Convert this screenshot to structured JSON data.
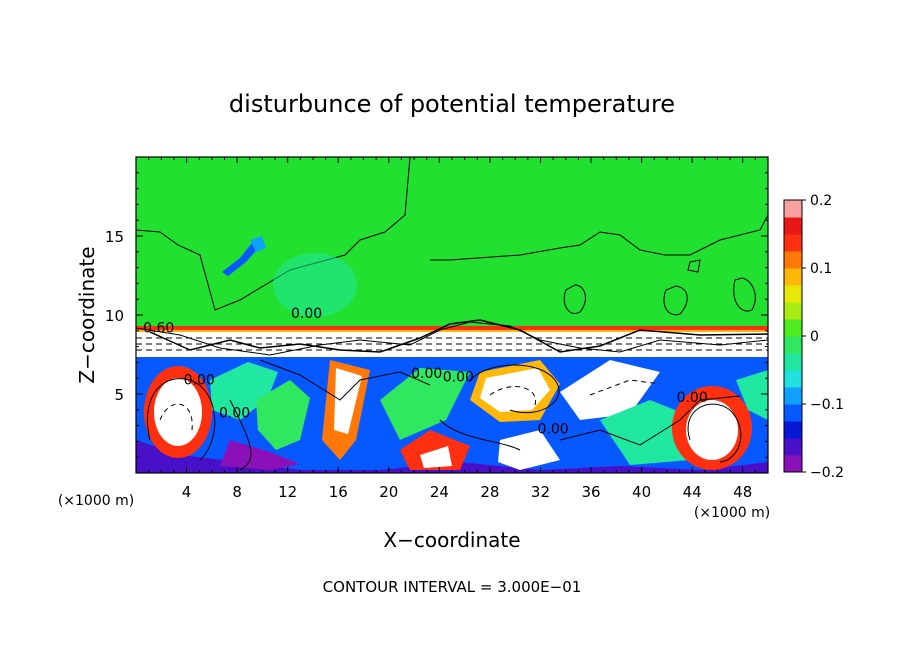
{
  "chart_data": {
    "type": "heatmap",
    "title": "disturbunce of potential temperature",
    "xlabel": "X−coordinate",
    "ylabel": "Z−coordinate",
    "x_unit_left": "(×1000 m)",
    "x_unit_right": "(×1000 m)",
    "footer": "CONTOUR INTERVAL = 3.000E−01",
    "xlim": [
      0,
      50
    ],
    "ylim": [
      0,
      20
    ],
    "x_ticks": [
      4,
      8,
      12,
      16,
      20,
      24,
      28,
      32,
      36,
      40,
      44,
      48
    ],
    "y_ticks": [
      5,
      10,
      15
    ],
    "colorbar": {
      "range": [
        -0.2,
        0.2
      ],
      "tick_labels": [
        {
          "value": 0.2,
          "label": "0.2"
        },
        {
          "value": 0.1,
          "label": "0.1"
        },
        {
          "value": 0,
          "label": "0"
        },
        {
          "value": -0.1,
          "label": "−0.1"
        },
        {
          "value": -0.2,
          "label": "−0.2"
        }
      ],
      "colors": [
        "#8a10b8",
        "#4810c8",
        "#0818d8",
        "#0858ff",
        "#10a0ff",
        "#20e0e0",
        "#20e8a0",
        "#30e860",
        "#50ec20",
        "#a8ec10",
        "#e8e808",
        "#ffb808",
        "#ff7808",
        "#ff3010",
        "#e81818",
        "#f8a0a0"
      ]
    },
    "contour_labels": [
      {
        "x": 1.8,
        "y": 8.9,
        "label": "0.60"
      },
      {
        "x": 13.5,
        "y": 9.8,
        "label": "0.00"
      },
      {
        "x": 5.0,
        "y": 5.6,
        "label": "0.00"
      },
      {
        "x": 7.8,
        "y": 3.5,
        "label": "0.00"
      },
      {
        "x": 23.0,
        "y": 6.0,
        "label": "0.00"
      },
      {
        "x": 25.5,
        "y": 5.8,
        "label": "0.00"
      },
      {
        "x": 33.0,
        "y": 2.5,
        "label": "0.00"
      },
      {
        "x": 44.0,
        "y": 4.5,
        "label": "0.00"
      }
    ]
  }
}
